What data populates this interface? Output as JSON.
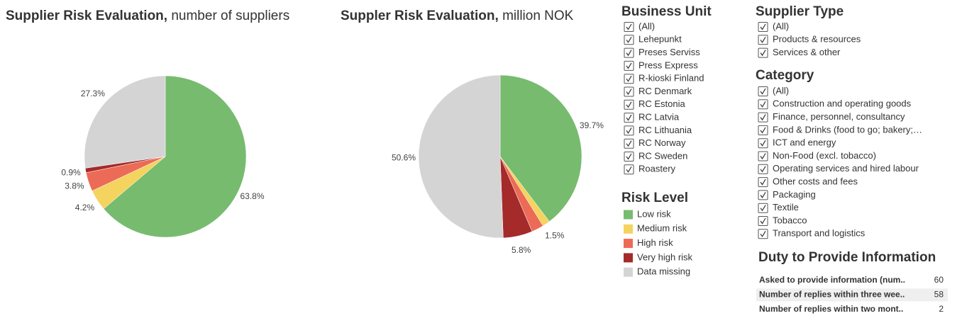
{
  "chart_data": [
    {
      "type": "pie",
      "title": "Supplier Risk Evaluation,",
      "subtitle": "number of suppliers",
      "legend_title": "Risk Level",
      "categories": [
        "Low risk",
        "Medium risk",
        "High risk",
        "Very high risk",
        "Data missing"
      ],
      "colors": [
        "#77bb6f",
        "#f4d35e",
        "#ec6b56",
        "#a52a2a",
        "#d4d4d4"
      ],
      "values": [
        63.8,
        4.2,
        3.8,
        0.9,
        27.3
      ],
      "value_labels": [
        "63.8%",
        "4.2%",
        "3.8%",
        "0.9%",
        "27.3%"
      ]
    },
    {
      "type": "pie",
      "title": "Suppler Risk Evaluation,",
      "subtitle": "million NOK",
      "categories": [
        "Low risk",
        "Medium risk",
        "High risk",
        "Very high risk",
        "Data missing"
      ],
      "colors": [
        "#77bb6f",
        "#f4d35e",
        "#ec6b56",
        "#a52a2a",
        "#d4d4d4"
      ],
      "values": [
        39.7,
        1.5,
        2.4,
        5.8,
        50.6
      ],
      "value_labels": [
        "39.7%",
        "1.5%",
        null,
        "5.8%",
        "50.6%"
      ]
    }
  ],
  "filters": [
    {
      "title": "Business Unit",
      "options": [
        "(All)",
        "Lehepunkt",
        "Preses Serviss",
        "Press Express",
        "R-kioski Finland",
        "RC Denmark",
        "RC Estonia",
        "RC Latvia",
        "RC Lithuania",
        "RC Norway",
        "RC Sweden",
        "Roastery"
      ]
    },
    {
      "title": "Supplier Type",
      "options": [
        "(All)",
        "Products & resources",
        "Services & other"
      ]
    },
    {
      "title": "Category",
      "options": [
        "(All)",
        "Construction and operating goods",
        "Finance, personnel, consultancy",
        "Food & Drinks (food to go; bakery;…",
        "ICT and energy",
        "Non-Food (excl. tobacco)",
        "Operating services and hired labour",
        "Other costs and fees",
        "Packaging",
        "Textile",
        "Tobacco",
        "Transport and logistics"
      ]
    }
  ],
  "duty_table": {
    "title": "Duty to Provide Information",
    "rows": [
      [
        "Asked to provide information (num..",
        60
      ],
      [
        "Number of replies within three wee..",
        58
      ],
      [
        "Number of replies within two mont..",
        2
      ]
    ]
  }
}
